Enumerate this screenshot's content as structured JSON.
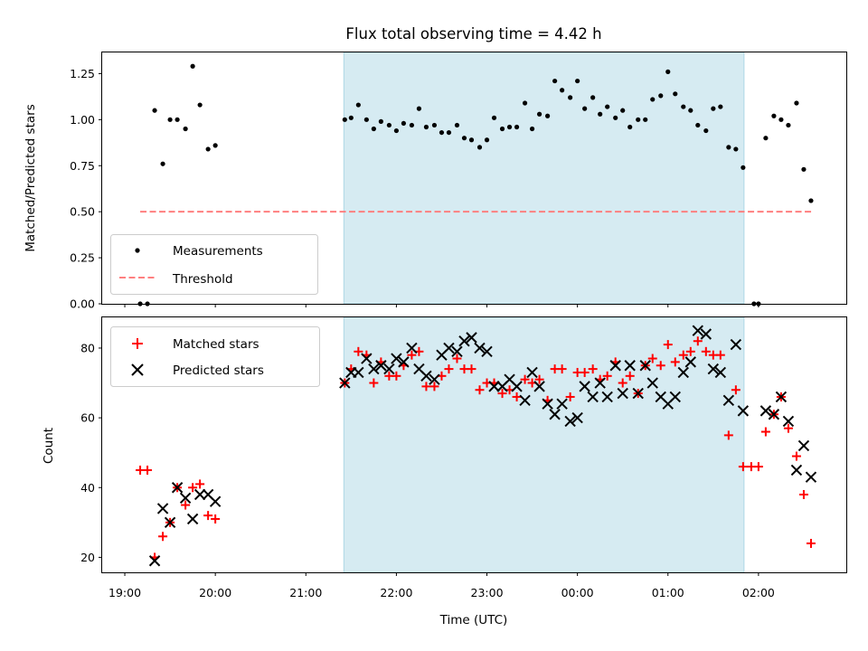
{
  "chart_data": [
    {
      "type": "scatter",
      "title": "Flux total observing time = 4.42 h",
      "xlabel": "",
      "ylabel": "Matched/Predicted stars",
      "xlim": [
        18.75,
        26.97
      ],
      "ylim": [
        0,
        1.365
      ],
      "yticks": [
        0.0,
        0.25,
        0.5,
        0.75,
        1.0,
        1.25
      ],
      "ytick_labels": [
        "0.00",
        "0.25",
        "0.50",
        "0.75",
        "1.00",
        "1.25"
      ],
      "shaded_span": [
        21.42,
        25.84
      ],
      "legend": {
        "position": "bottom-left",
        "entries": [
          "Measurements",
          "Threshold"
        ]
      },
      "threshold": {
        "name": "Threshold",
        "y": 0.5,
        "x": [
          19.17,
          26.6
        ]
      },
      "series": [
        {
          "name": "Measurements",
          "points": [
            [
              19.17,
              0
            ],
            [
              19.25,
              0
            ],
            [
              19.33,
              1.05
            ],
            [
              19.42,
              0.76
            ],
            [
              19.5,
              1.0
            ],
            [
              19.58,
              1.0
            ],
            [
              19.67,
              0.95
            ],
            [
              19.75,
              1.29
            ],
            [
              19.83,
              1.08
            ],
            [
              19.92,
              0.84
            ],
            [
              20.0,
              0.86
            ],
            [
              21.43,
              1.0
            ],
            [
              21.5,
              1.01
            ],
            [
              21.58,
              1.08
            ],
            [
              21.67,
              1.0
            ],
            [
              21.75,
              0.95
            ],
            [
              21.83,
              0.99
            ],
            [
              21.92,
              0.97
            ],
            [
              22.0,
              0.94
            ],
            [
              22.08,
              0.98
            ],
            [
              22.17,
              0.97
            ],
            [
              22.25,
              1.06
            ],
            [
              22.33,
              0.96
            ],
            [
              22.42,
              0.97
            ],
            [
              22.5,
              0.93
            ],
            [
              22.58,
              0.93
            ],
            [
              22.67,
              0.97
            ],
            [
              22.75,
              0.9
            ],
            [
              22.83,
              0.89
            ],
            [
              22.92,
              0.85
            ],
            [
              23.0,
              0.89
            ],
            [
              23.08,
              1.01
            ],
            [
              23.17,
              0.95
            ],
            [
              23.25,
              0.96
            ],
            [
              23.33,
              0.96
            ],
            [
              23.42,
              1.09
            ],
            [
              23.5,
              0.95
            ],
            [
              23.58,
              1.03
            ],
            [
              23.67,
              1.02
            ],
            [
              23.75,
              1.21
            ],
            [
              23.83,
              1.16
            ],
            [
              23.92,
              1.12
            ],
            [
              24.0,
              1.21
            ],
            [
              24.08,
              1.06
            ],
            [
              24.17,
              1.12
            ],
            [
              24.25,
              1.03
            ],
            [
              24.33,
              1.07
            ],
            [
              24.42,
              1.01
            ],
            [
              24.5,
              1.05
            ],
            [
              24.58,
              0.96
            ],
            [
              24.67,
              1.0
            ],
            [
              24.75,
              1.0
            ],
            [
              24.83,
              1.11
            ],
            [
              24.92,
              1.13
            ],
            [
              25.0,
              1.26
            ],
            [
              25.08,
              1.14
            ],
            [
              25.17,
              1.07
            ],
            [
              25.25,
              1.05
            ],
            [
              25.33,
              0.97
            ],
            [
              25.42,
              0.94
            ],
            [
              25.5,
              1.06
            ],
            [
              25.58,
              1.07
            ],
            [
              25.67,
              0.85
            ],
            [
              25.75,
              0.84
            ],
            [
              25.83,
              0.74
            ],
            [
              25.95,
              0
            ],
            [
              26.0,
              0
            ],
            [
              26.08,
              0.9
            ],
            [
              26.17,
              1.02
            ],
            [
              26.25,
              1.0
            ],
            [
              26.33,
              0.97
            ],
            [
              26.42,
              1.09
            ],
            [
              26.5,
              0.73
            ],
            [
              26.58,
              0.56
            ]
          ]
        }
      ]
    },
    {
      "type": "scatter",
      "title": "",
      "xlabel": "Time (UTC)",
      "ylabel": "Count",
      "xlim": [
        18.75,
        26.97
      ],
      "ylim": [
        15.7,
        88.8
      ],
      "yticks": [
        20,
        40,
        60,
        80
      ],
      "ytick_labels": [
        "20",
        "40",
        "60",
        "80"
      ],
      "xticks": [
        19,
        20,
        21,
        22,
        23,
        24,
        25,
        26
      ],
      "xtick_labels": [
        "19:00",
        "20:00",
        "21:00",
        "22:00",
        "23:00",
        "00:00",
        "01:00",
        "02:00"
      ],
      "shaded_span": [
        21.42,
        25.84
      ],
      "legend": {
        "position": "top-left",
        "entries": [
          "Matched stars",
          "Predicted stars"
        ]
      },
      "series": [
        {
          "name": "Matched stars",
          "color": "#ff0000",
          "marker": "plus",
          "points": [
            [
              19.17,
              45
            ],
            [
              19.25,
              45
            ],
            [
              19.33,
              20
            ],
            [
              19.42,
              26
            ],
            [
              19.5,
              30
            ],
            [
              19.58,
              40
            ],
            [
              19.67,
              35
            ],
            [
              19.75,
              40
            ],
            [
              19.83,
              41
            ],
            [
              19.92,
              32
            ],
            [
              20.0,
              31
            ],
            [
              21.43,
              70
            ],
            [
              21.5,
              74
            ],
            [
              21.58,
              79
            ],
            [
              21.67,
              78
            ],
            [
              21.75,
              70
            ],
            [
              21.83,
              76
            ],
            [
              21.92,
              72
            ],
            [
              22.0,
              72
            ],
            [
              22.08,
              75
            ],
            [
              22.17,
              78
            ],
            [
              22.25,
              79
            ],
            [
              22.33,
              69
            ],
            [
              22.42,
              69
            ],
            [
              22.5,
              72
            ],
            [
              22.58,
              74
            ],
            [
              22.67,
              77
            ],
            [
              22.75,
              74
            ],
            [
              22.83,
              74
            ],
            [
              22.92,
              68
            ],
            [
              23.0,
              70
            ],
            [
              23.08,
              70
            ],
            [
              23.17,
              67
            ],
            [
              23.25,
              68
            ],
            [
              23.33,
              66
            ],
            [
              23.42,
              71
            ],
            [
              23.5,
              70
            ],
            [
              23.58,
              71
            ],
            [
              23.67,
              65
            ],
            [
              23.75,
              74
            ],
            [
              23.83,
              74
            ],
            [
              23.92,
              66
            ],
            [
              24.0,
              73
            ],
            [
              24.08,
              73
            ],
            [
              24.17,
              74
            ],
            [
              24.25,
              71
            ],
            [
              24.33,
              72
            ],
            [
              24.42,
              76
            ],
            [
              24.5,
              70
            ],
            [
              24.58,
              72
            ],
            [
              24.67,
              67
            ],
            [
              24.75,
              75
            ],
            [
              24.83,
              77
            ],
            [
              24.92,
              75
            ],
            [
              25.0,
              81
            ],
            [
              25.08,
              76
            ],
            [
              25.17,
              78
            ],
            [
              25.25,
              79
            ],
            [
              25.33,
              82
            ],
            [
              25.42,
              79
            ],
            [
              25.5,
              78
            ],
            [
              25.58,
              78
            ],
            [
              25.67,
              55
            ],
            [
              25.75,
              68
            ],
            [
              25.83,
              46
            ],
            [
              25.92,
              46
            ],
            [
              26.0,
              46
            ],
            [
              26.08,
              56
            ],
            [
              26.17,
              61
            ],
            [
              26.25,
              66
            ],
            [
              26.33,
              57
            ],
            [
              26.42,
              49
            ],
            [
              26.5,
              38
            ],
            [
              26.58,
              24
            ]
          ]
        },
        {
          "name": "Predicted stars",
          "color": "#000000",
          "marker": "x",
          "points": [
            [
              19.33,
              19
            ],
            [
              19.42,
              34
            ],
            [
              19.5,
              30
            ],
            [
              19.58,
              40
            ],
            [
              19.67,
              37
            ],
            [
              19.75,
              31
            ],
            [
              19.83,
              38
            ],
            [
              19.92,
              38
            ],
            [
              20.0,
              36
            ],
            [
              21.43,
              70
            ],
            [
              21.5,
              73
            ],
            [
              21.58,
              73
            ],
            [
              21.67,
              77
            ],
            [
              21.75,
              74
            ],
            [
              21.83,
              75
            ],
            [
              21.92,
              74
            ],
            [
              22.0,
              77
            ],
            [
              22.08,
              76
            ],
            [
              22.17,
              80
            ],
            [
              22.25,
              74
            ],
            [
              22.33,
              72
            ],
            [
              22.42,
              71
            ],
            [
              22.5,
              78
            ],
            [
              22.58,
              80
            ],
            [
              22.67,
              79
            ],
            [
              22.75,
              82
            ],
            [
              22.83,
              83
            ],
            [
              22.92,
              80
            ],
            [
              23.0,
              79
            ],
            [
              23.08,
              69
            ],
            [
              23.17,
              69
            ],
            [
              23.25,
              71
            ],
            [
              23.33,
              69
            ],
            [
              23.42,
              65
            ],
            [
              23.5,
              73
            ],
            [
              23.58,
              69
            ],
            [
              23.67,
              64
            ],
            [
              23.75,
              61
            ],
            [
              23.83,
              64
            ],
            [
              23.92,
              59
            ],
            [
              24.0,
              60
            ],
            [
              24.08,
              69
            ],
            [
              24.17,
              66
            ],
            [
              24.25,
              70
            ],
            [
              24.33,
              66
            ],
            [
              24.42,
              75
            ],
            [
              24.5,
              67
            ],
            [
              24.58,
              75
            ],
            [
              24.67,
              67
            ],
            [
              24.75,
              75
            ],
            [
              24.83,
              70
            ],
            [
              24.92,
              66
            ],
            [
              25.0,
              64
            ],
            [
              25.08,
              66
            ],
            [
              25.17,
              73
            ],
            [
              25.25,
              76
            ],
            [
              25.33,
              85
            ],
            [
              25.42,
              84
            ],
            [
              25.5,
              74
            ],
            [
              25.58,
              73
            ],
            [
              25.67,
              65
            ],
            [
              25.75,
              81
            ],
            [
              25.83,
              62
            ],
            [
              26.08,
              62
            ],
            [
              26.17,
              61
            ],
            [
              26.25,
              66
            ],
            [
              26.33,
              59
            ],
            [
              26.42,
              45
            ],
            [
              26.5,
              52
            ],
            [
              26.58,
              43
            ]
          ]
        }
      ]
    }
  ]
}
